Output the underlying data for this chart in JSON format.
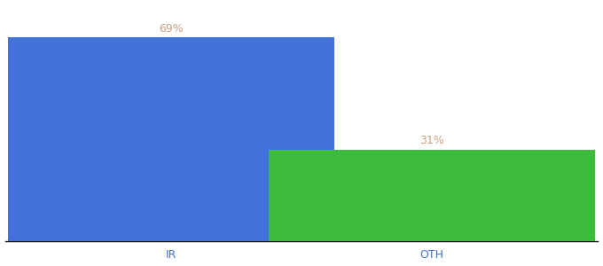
{
  "categories": [
    "IR",
    "OTH"
  ],
  "values": [
    69,
    31
  ],
  "bar_colors": [
    "#4472db",
    "#3dbb3d"
  ],
  "label_texts": [
    "69%",
    "31%"
  ],
  "label_color": "#c8a080",
  "ylim": [
    0,
    80
  ],
  "background_color": "#ffffff",
  "bar_width": 0.55,
  "label_fontsize": 9,
  "tick_fontsize": 9,
  "tick_color": "#4472db",
  "x_positions": [
    0.28,
    0.72
  ]
}
